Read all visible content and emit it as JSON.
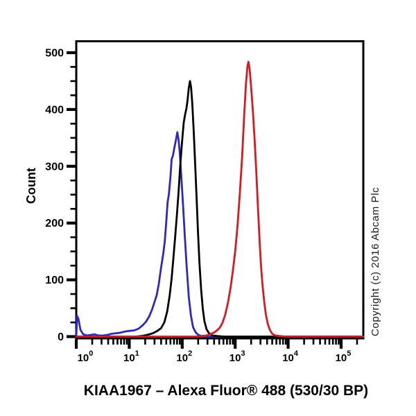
{
  "chart_data": {
    "type": "line",
    "subtype": "flow-cytometry-histogram-overlay",
    "title": "KIAA1967 – Alexa Fluor® 488 (530/30 BP)",
    "xlabel": "",
    "ylabel": "Count",
    "watermark": "Copyright (c) 2016 Abcam Plc",
    "x_scale": "log10",
    "x_range": [
      1,
      262144
    ],
    "y_range": [
      0,
      520
    ],
    "y_ticks": [
      0,
      100,
      200,
      300,
      400,
      500
    ],
    "y_minor_step": 25,
    "x_major_tick_exponents": [
      0,
      1,
      2,
      3,
      4,
      5
    ],
    "grid": false,
    "legend": null,
    "axis_color": "#000000",
    "series": [
      {
        "name": "blue",
        "color": "#2b28c4",
        "peak": {
          "x": 81,
          "count": 360
        },
        "points": [
          [
            1.0,
            0
          ],
          [
            1.04,
            36
          ],
          [
            1.1,
            31
          ],
          [
            1.2,
            12
          ],
          [
            1.35,
            4
          ],
          [
            1.6,
            2
          ],
          [
            1.9,
            3
          ],
          [
            2.2,
            4
          ],
          [
            2.6,
            2
          ],
          [
            3.2,
            2
          ],
          [
            3.9,
            3
          ],
          [
            4.7,
            5
          ],
          [
            5.7,
            6
          ],
          [
            6.9,
            7
          ],
          [
            8.3,
            9
          ],
          [
            10,
            10
          ],
          [
            12.5,
            11
          ],
          [
            15,
            14
          ],
          [
            18,
            20
          ],
          [
            21,
            27
          ],
          [
            24,
            36
          ],
          [
            27,
            48
          ],
          [
            30,
            61
          ],
          [
            33,
            73
          ],
          [
            36,
            92
          ],
          [
            40,
            122
          ],
          [
            44,
            147
          ],
          [
            47,
            168
          ],
          [
            50,
            202
          ],
          [
            53,
            236
          ],
          [
            56,
            251
          ],
          [
            60,
            282
          ],
          [
            63,
            312
          ],
          [
            67,
            319
          ],
          [
            71,
            332
          ],
          [
            76,
            346
          ],
          [
            81,
            360
          ],
          [
            85,
            348
          ],
          [
            90,
            324
          ],
          [
            96,
            284
          ],
          [
            103,
            236
          ],
          [
            112,
            176
          ],
          [
            122,
            120
          ],
          [
            133,
            70
          ],
          [
            146,
            37
          ],
          [
            160,
            17
          ],
          [
            178,
            8
          ],
          [
            200,
            3
          ],
          [
            232,
            1
          ],
          [
            290,
            0
          ],
          [
            262144,
            0
          ]
        ]
      },
      {
        "name": "black",
        "color": "#000000",
        "peak": {
          "x": 140,
          "count": 450
        },
        "points": [
          [
            1,
            0
          ],
          [
            13,
            0
          ],
          [
            17,
            1
          ],
          [
            22,
            3
          ],
          [
            28,
            6
          ],
          [
            34,
            10
          ],
          [
            40,
            15
          ],
          [
            46,
            25
          ],
          [
            52,
            44
          ],
          [
            58,
            72
          ],
          [
            63,
            102
          ],
          [
            68,
            137
          ],
          [
            73,
            172
          ],
          [
            79,
            212
          ],
          [
            85,
            252
          ],
          [
            92,
            302
          ],
          [
            99,
            342
          ],
          [
            107,
            377
          ],
          [
            114,
            392
          ],
          [
            120,
            401
          ],
          [
            126,
            416
          ],
          [
            133,
            438
          ],
          [
            140,
            450
          ],
          [
            147,
            439
          ],
          [
            155,
            411
          ],
          [
            165,
            362
          ],
          [
            175,
            306
          ],
          [
            186,
            249
          ],
          [
            198,
            186
          ],
          [
            212,
            129
          ],
          [
            228,
            83
          ],
          [
            245,
            49
          ],
          [
            263,
            27
          ],
          [
            288,
            13
          ],
          [
            320,
            6
          ],
          [
            372,
            2
          ],
          [
            455,
            1
          ],
          [
            620,
            0
          ],
          [
            262144,
            0
          ]
        ]
      },
      {
        "name": "red",
        "color": "#d8191f",
        "peak": {
          "x": 1785,
          "count": 484
        },
        "points": [
          [
            1,
            0
          ],
          [
            195,
            0
          ],
          [
            240,
            1
          ],
          [
            285,
            2
          ],
          [
            335,
            4
          ],
          [
            395,
            7
          ],
          [
            455,
            11
          ],
          [
            515,
            16
          ],
          [
            575,
            24
          ],
          [
            645,
            38
          ],
          [
            725,
            58
          ],
          [
            815,
            85
          ],
          [
            905,
            116
          ],
          [
            1005,
            152
          ],
          [
            1110,
            197
          ],
          [
            1225,
            252
          ],
          [
            1355,
            318
          ],
          [
            1485,
            392
          ],
          [
            1600,
            446
          ],
          [
            1705,
            476
          ],
          [
            1785,
            484
          ],
          [
            1885,
            469
          ],
          [
            2005,
            438
          ],
          [
            2155,
            398
          ],
          [
            2325,
            348
          ],
          [
            2505,
            289
          ],
          [
            2705,
            224
          ],
          [
            2905,
            164
          ],
          [
            3105,
            119
          ],
          [
            3310,
            87
          ],
          [
            3555,
            59
          ],
          [
            3805,
            39
          ],
          [
            4105,
            23
          ],
          [
            4505,
            12
          ],
          [
            5005,
            5
          ],
          [
            5705,
            2
          ],
          [
            7000,
            1
          ],
          [
            9100,
            0
          ],
          [
            262144,
            0
          ]
        ]
      }
    ]
  }
}
